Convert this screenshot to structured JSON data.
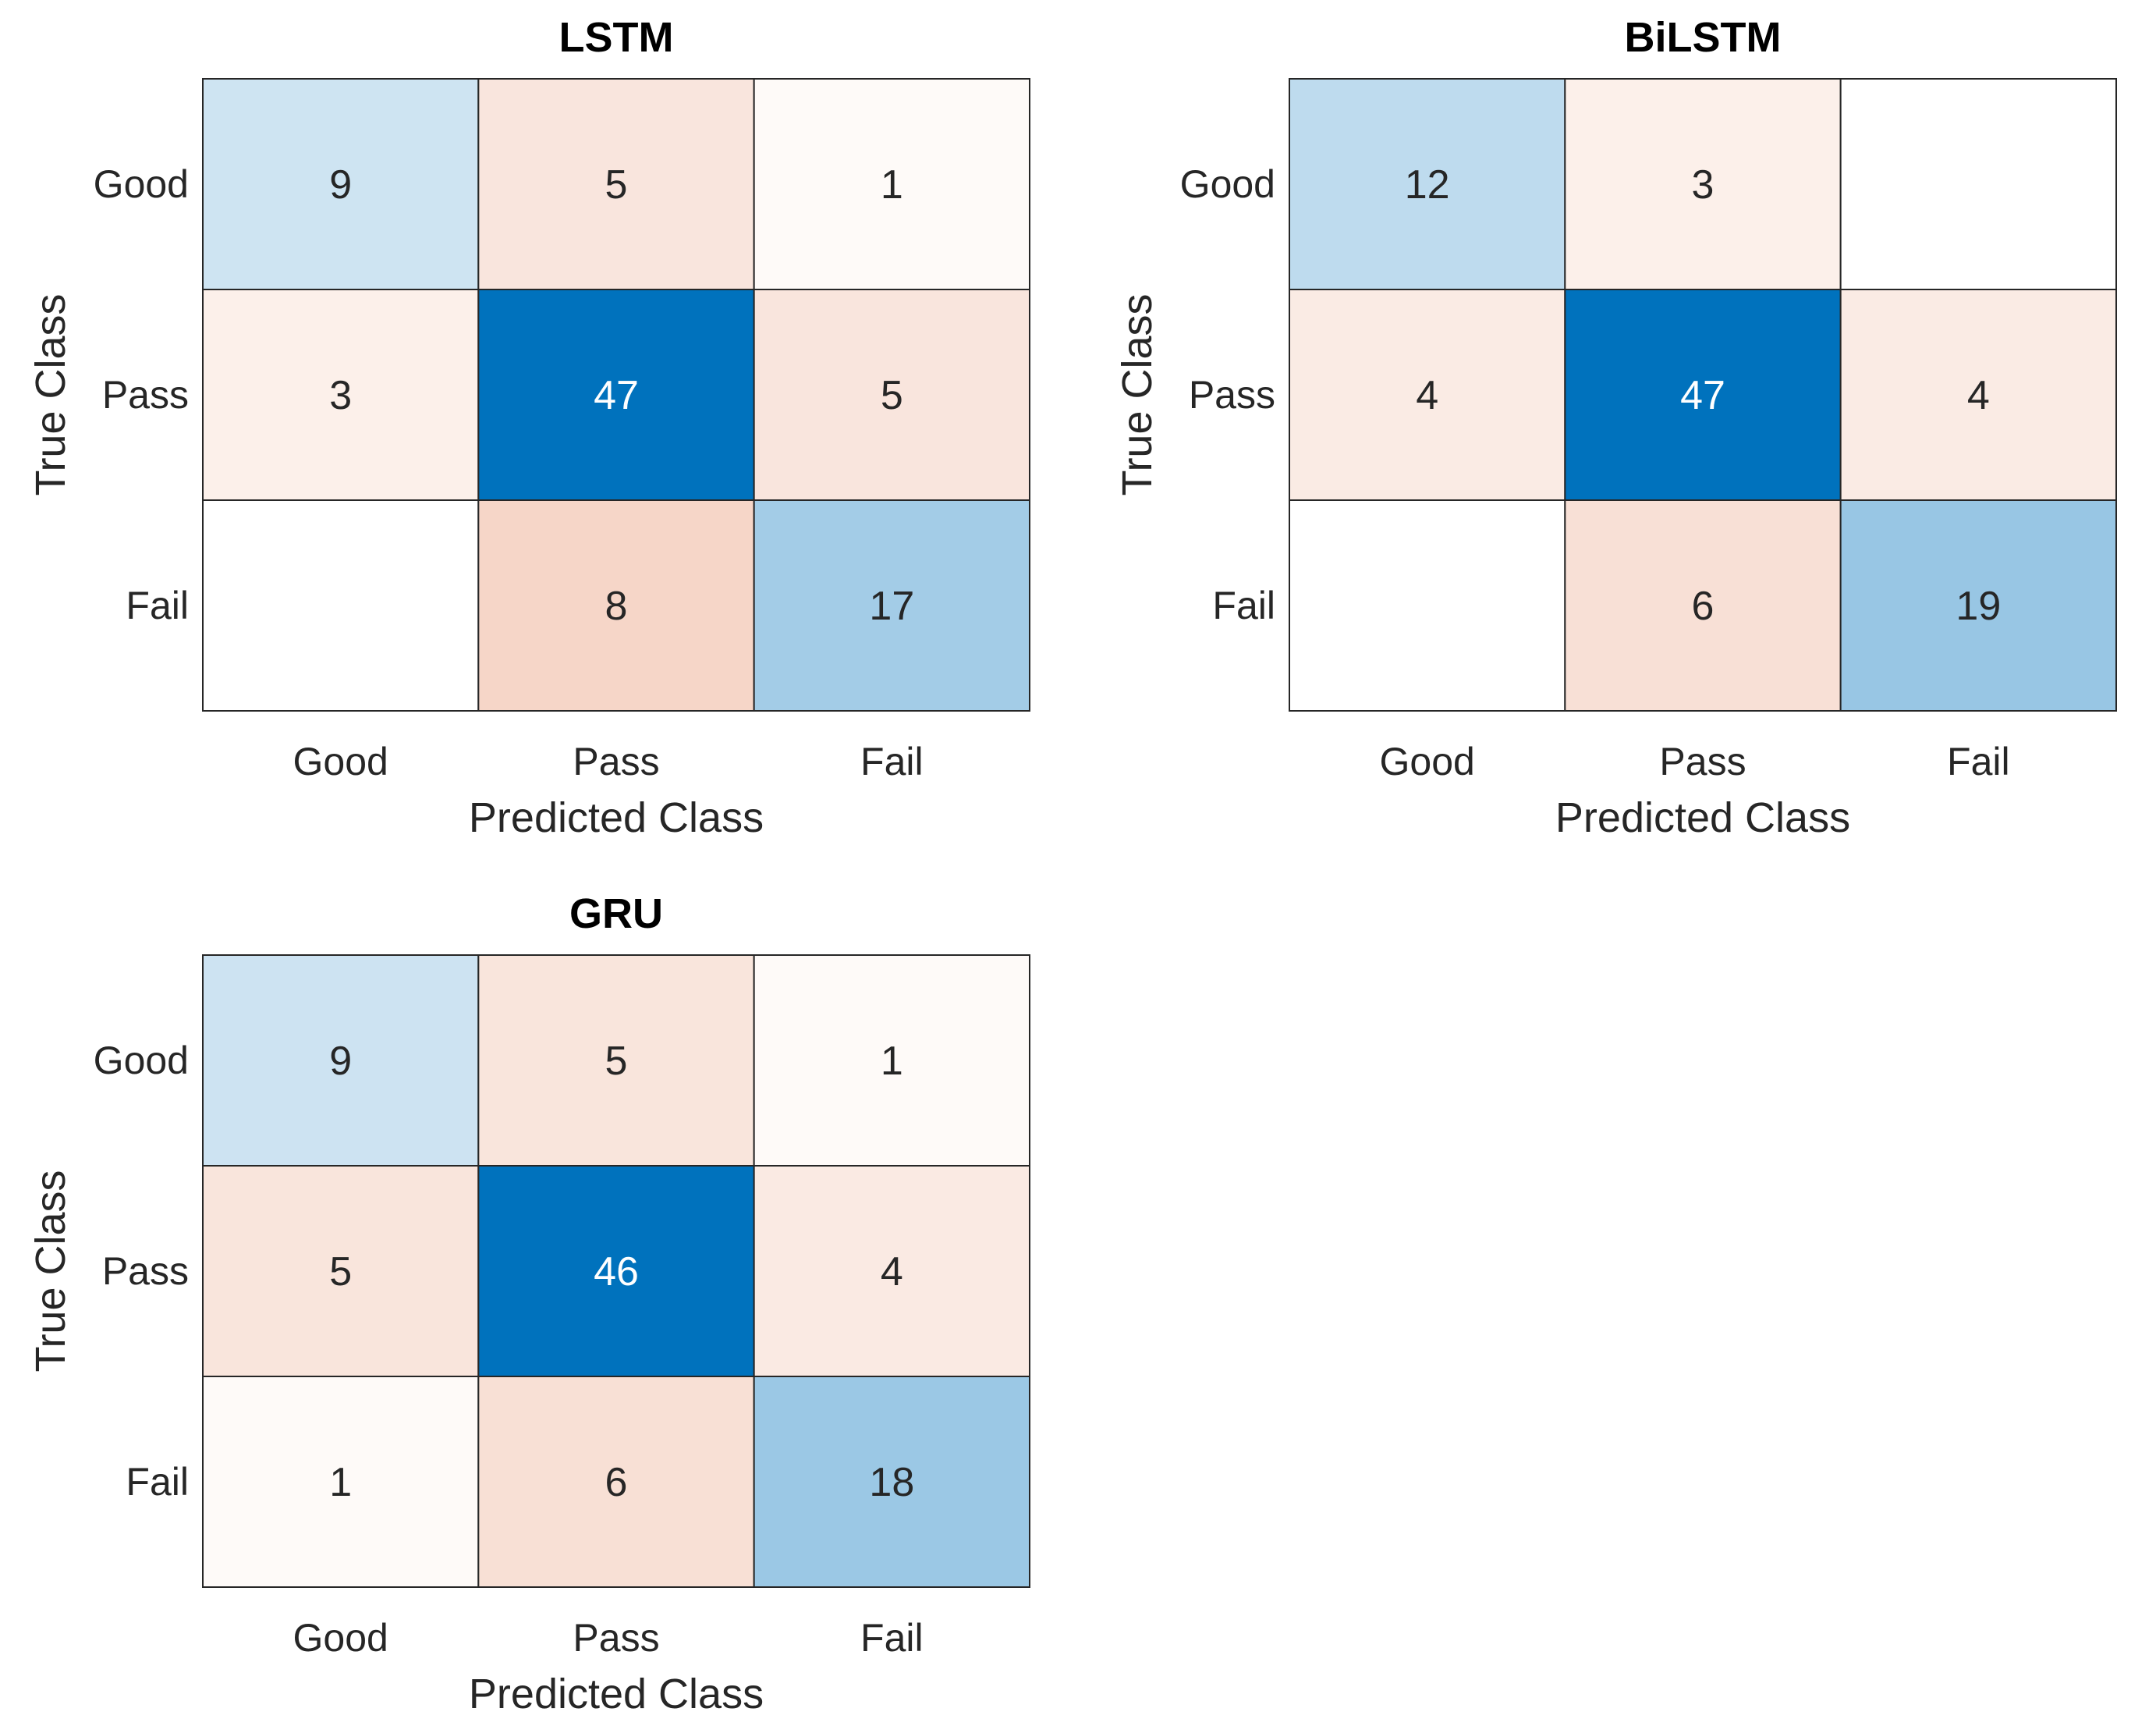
{
  "chart_data": [
    {
      "type": "heatmap",
      "title": "LSTM",
      "xlabel": "Predicted Class",
      "ylabel": "True Class",
      "x_categories": [
        "Good",
        "Pass",
        "Fail"
      ],
      "y_categories": [
        "Good",
        "Pass",
        "Fail"
      ],
      "values": [
        [
          9,
          5,
          1
        ],
        [
          3,
          47,
          5
        ],
        [
          null,
          8,
          17
        ]
      ]
    },
    {
      "type": "heatmap",
      "title": "BiLSTM",
      "xlabel": "Predicted Class",
      "ylabel": "True Class",
      "x_categories": [
        "Good",
        "Pass",
        "Fail"
      ],
      "y_categories": [
        "Good",
        "Pass",
        "Fail"
      ],
      "values": [
        [
          12,
          3,
          null
        ],
        [
          4,
          47,
          4
        ],
        [
          null,
          6,
          19
        ]
      ]
    },
    {
      "type": "heatmap",
      "title": "GRU",
      "xlabel": "Predicted Class",
      "ylabel": "True Class",
      "x_categories": [
        "Good",
        "Pass",
        "Fail"
      ],
      "y_categories": [
        "Good",
        "Pass",
        "Fail"
      ],
      "values": [
        [
          9,
          5,
          1
        ],
        [
          5,
          46,
          4
        ],
        [
          1,
          6,
          18
        ]
      ]
    }
  ],
  "colors": {
    "diagonal": "#0072BD",
    "off_diagonal": "#D95319",
    "grid": "#262626"
  }
}
